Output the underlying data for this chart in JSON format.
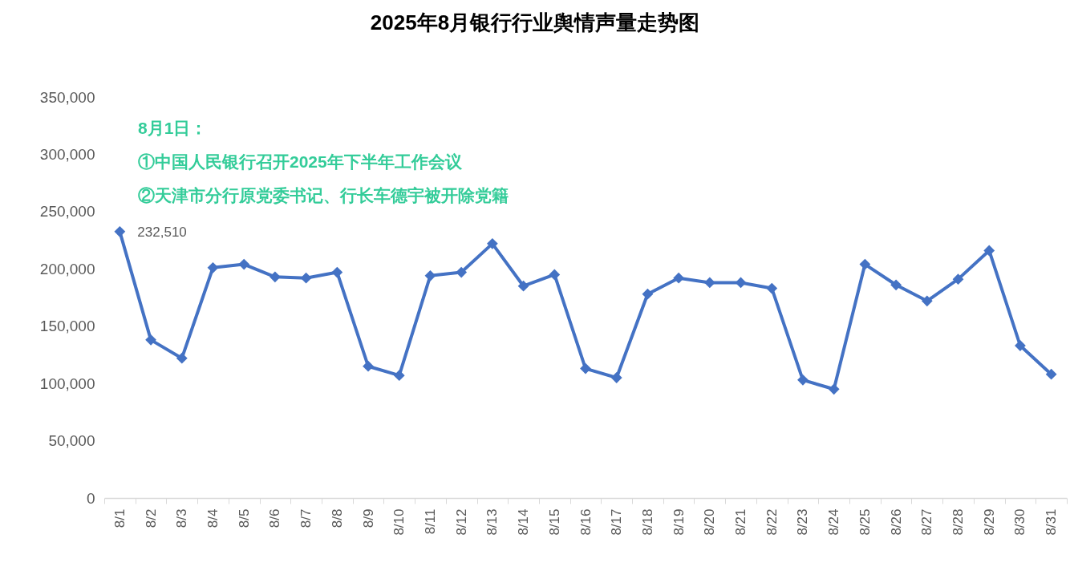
{
  "chart_data": {
    "type": "line",
    "title": "2025年8月银行行业舆情声量走势图",
    "annotations": [
      "8月1日：",
      "①中国人民银行召开2025年下半年工作会议",
      "②天津市分行原党委书记、行长车德宇被开除党籍"
    ],
    "categories": [
      "8/1",
      "8/2",
      "8/3",
      "8/4",
      "8/5",
      "8/6",
      "8/7",
      "8/8",
      "8/9",
      "8/10",
      "8/11",
      "8/12",
      "8/13",
      "8/14",
      "8/15",
      "8/16",
      "8/17",
      "8/18",
      "8/19",
      "8/20",
      "8/21",
      "8/22",
      "8/23",
      "8/24",
      "8/25",
      "8/26",
      "8/27",
      "8/28",
      "8/29",
      "8/30",
      "8/31"
    ],
    "values": [
      232510,
      138000,
      122000,
      201000,
      204000,
      193000,
      192000,
      197000,
      115000,
      107000,
      194000,
      197000,
      222000,
      185000,
      195000,
      113000,
      105000,
      178000,
      192000,
      188000,
      188000,
      183000,
      103000,
      95000,
      204000,
      186000,
      172000,
      191000,
      216000,
      133000,
      108000
    ],
    "value_labels": [
      "232,510",
      null,
      null,
      null,
      null,
      null,
      null,
      null,
      null,
      null,
      null,
      null,
      null,
      null,
      null,
      null,
      null,
      null,
      null,
      null,
      null,
      null,
      null,
      null,
      null,
      null,
      null,
      null,
      null,
      null,
      null
    ],
    "color": "#4472c4",
    "ylim": [
      0,
      350000
    ],
    "yticks": [
      0,
      {
        "value": 50000,
        "label": "50,000"
      },
      {
        "value": 100000,
        "label": "100,000"
      },
      {
        "value": 150000,
        "label": "150,000"
      },
      {
        "value": 200000,
        "label": "200,000"
      },
      {
        "value": 250000,
        "label": "250,000"
      },
      {
        "value": 300000,
        "label": "300,000"
      },
      {
        "value": 350000,
        "label": "350,000"
      }
    ],
    "grid": false,
    "legend": false,
    "marker": "diamond",
    "line_style": "solid"
  }
}
